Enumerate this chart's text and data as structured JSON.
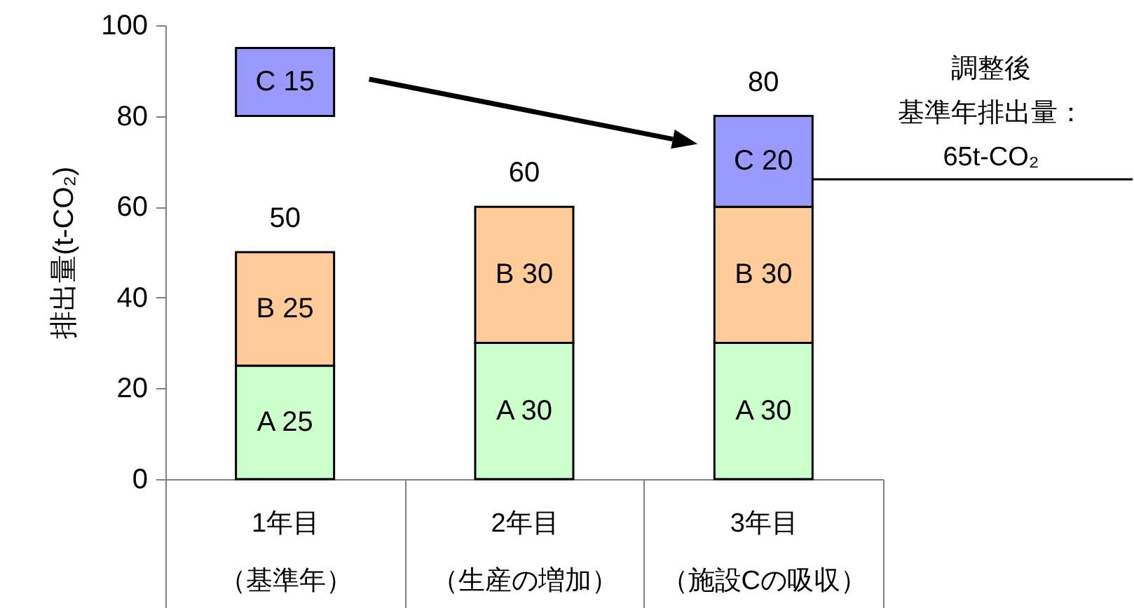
{
  "chart_data": {
    "type": "bar",
    "ylabel": "排出量(t-CO₂)",
    "categories": [
      "1年目（基準年）",
      "2年目（生産の増加）",
      "3年目（施設Cの吸収）"
    ],
    "series": [
      {
        "color": "#ccffcc",
        "values": [
          25,
          30,
          30
        ],
        "base": [
          0,
          0,
          0
        ],
        "value_labels": [
          "A 25",
          "A 30",
          "A 30"
        ]
      },
      {
        "color": "#ffcc99",
        "values": [
          25,
          30,
          30
        ],
        "base": [
          25,
          30,
          30
        ],
        "value_labels": [
          "B 25",
          "B 30",
          "B 30"
        ]
      },
      {
        "color": "#9999ff",
        "values": [
          15,
          null,
          20
        ],
        "base": [
          80,
          null,
          60
        ],
        "value_labels": [
          "C 15",
          null,
          "C 20"
        ]
      }
    ],
    "ylim": [
      0,
      100
    ],
    "yticks": [
      0,
      20,
      40,
      60,
      80,
      100
    ],
    "annotations": [
      {
        "text": "50",
        "x": "1年目（基準年）",
        "y": 50
      },
      {
        "text": "60",
        "x": "2年目（生産の増加）",
        "y": 60
      },
      {
        "text": "80",
        "x": "3年目（施設Cの吸収）",
        "y": 80
      },
      "調整後",
      "基準年排出量：",
      "65t-CO₂"
    ]
  }
}
